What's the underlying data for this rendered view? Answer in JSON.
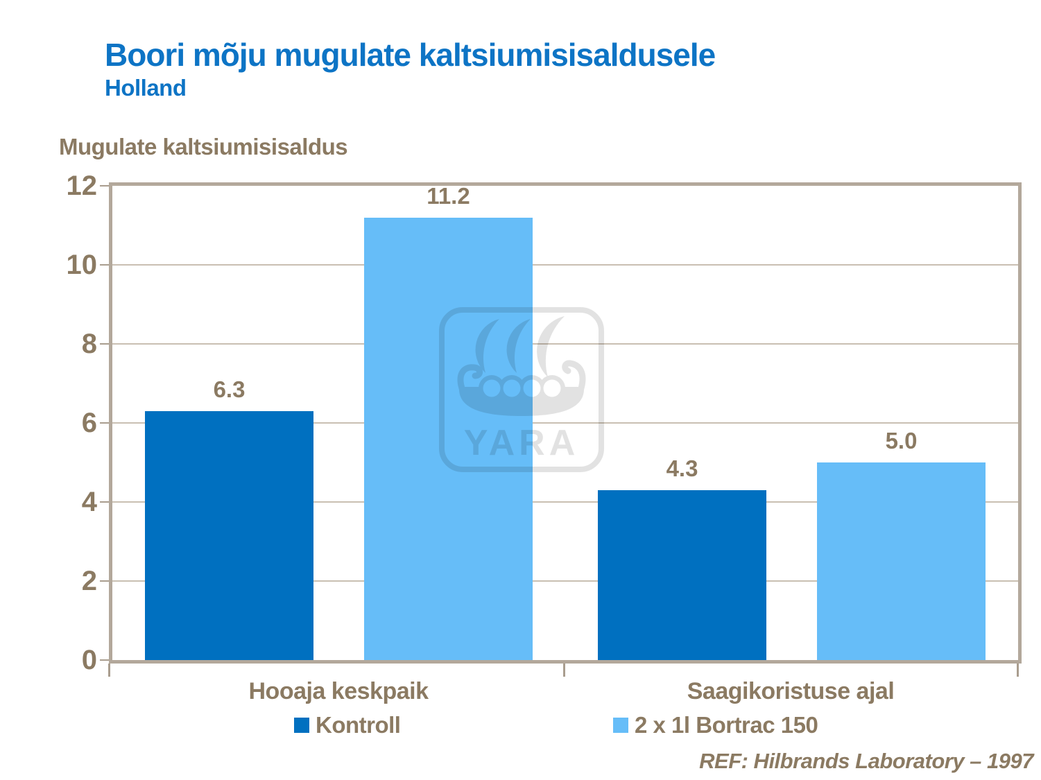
{
  "header": {
    "title": "Boori mõju mugulate kaltsiumisisaldusele",
    "subtitle": "Holland"
  },
  "chart_data": {
    "type": "bar",
    "title": "Boori mõju mugulate kaltsiumisisaldusele",
    "subtitle": "Holland",
    "axis_title": "Mugulate kaltsiumisisaldus",
    "categories": [
      "Hooaja keskpaik",
      "Saagikoristuse ajal"
    ],
    "series": [
      {
        "name": "Kontroll",
        "color": "#0070C0",
        "values": [
          6.3,
          4.3
        ],
        "value_labels": [
          "6.3",
          "4.3"
        ]
      },
      {
        "name": "2 x 1l Bortrac 150",
        "color": "#66BDF8",
        "values": [
          11.2,
          5.0
        ],
        "value_labels": [
          "11.2",
          "5.0"
        ]
      }
    ],
    "ylim": [
      0,
      12
    ],
    "yticks": [
      0,
      2,
      4,
      6,
      8,
      10,
      12
    ],
    "grid": true,
    "legend_position": "bottom"
  },
  "colors": {
    "title_blue": "#0D74C5",
    "text_brown": "#8B7A62",
    "plot_border": "#B3A89B",
    "gridline": "#C9BFB2"
  },
  "watermark": {
    "text": "YARA"
  },
  "footer": {
    "reference": "REF: Hilbrands Laboratory – 1997"
  }
}
